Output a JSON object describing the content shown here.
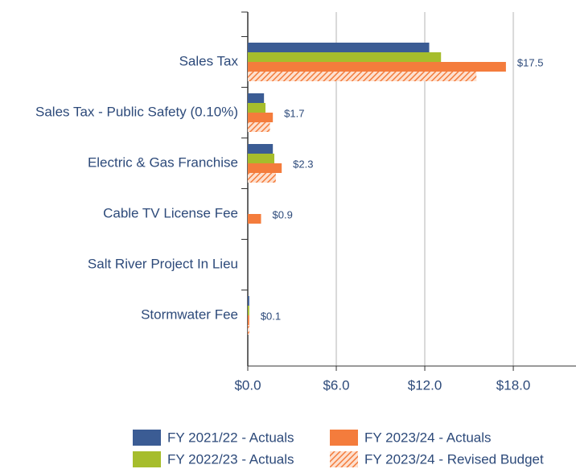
{
  "chart_data": {
    "type": "hbar",
    "categories": [
      "Sales Tax",
      "Sales Tax - Public Safety (0.10%)",
      "Electric & Gas Franchise",
      "Cable TV License Fee",
      "Salt River Project In Lieu",
      "Stormwater Fee"
    ],
    "series": [
      {
        "name": "FY 2021/22 - Actuals",
        "color": "#3b5c94",
        "values": [
          12.3,
          1.1,
          1.7,
          0,
          0,
          0.1
        ]
      },
      {
        "name": "FY 2022/23 - Actuals",
        "color": "#a6bd2c",
        "values": [
          13.1,
          1.2,
          1.8,
          0,
          0,
          0.1
        ]
      },
      {
        "name": "FY 2023/24 - Actuals",
        "color": "#f47c3c",
        "values": [
          17.5,
          1.7,
          2.3,
          0.9,
          0,
          0.1
        ],
        "value_labels": [
          "$17.5",
          "$1.7",
          "$2.3",
          "$0.9",
          null,
          "$0.1"
        ]
      },
      {
        "name": "FY 2023/24 - Revised Budget",
        "color": "#f47c3c",
        "hatch": true,
        "values": [
          15.5,
          1.5,
          1.9,
          0,
          0,
          0.1
        ]
      }
    ],
    "xlim": [
      0,
      22.25
    ],
    "xticks": [
      {
        "value": 0,
        "label": "$0.0"
      },
      {
        "value": 6,
        "label": "$6.0"
      },
      {
        "value": 12,
        "label": "$12.0"
      },
      {
        "value": 18,
        "label": "$18.0"
      }
    ],
    "grid": true
  }
}
